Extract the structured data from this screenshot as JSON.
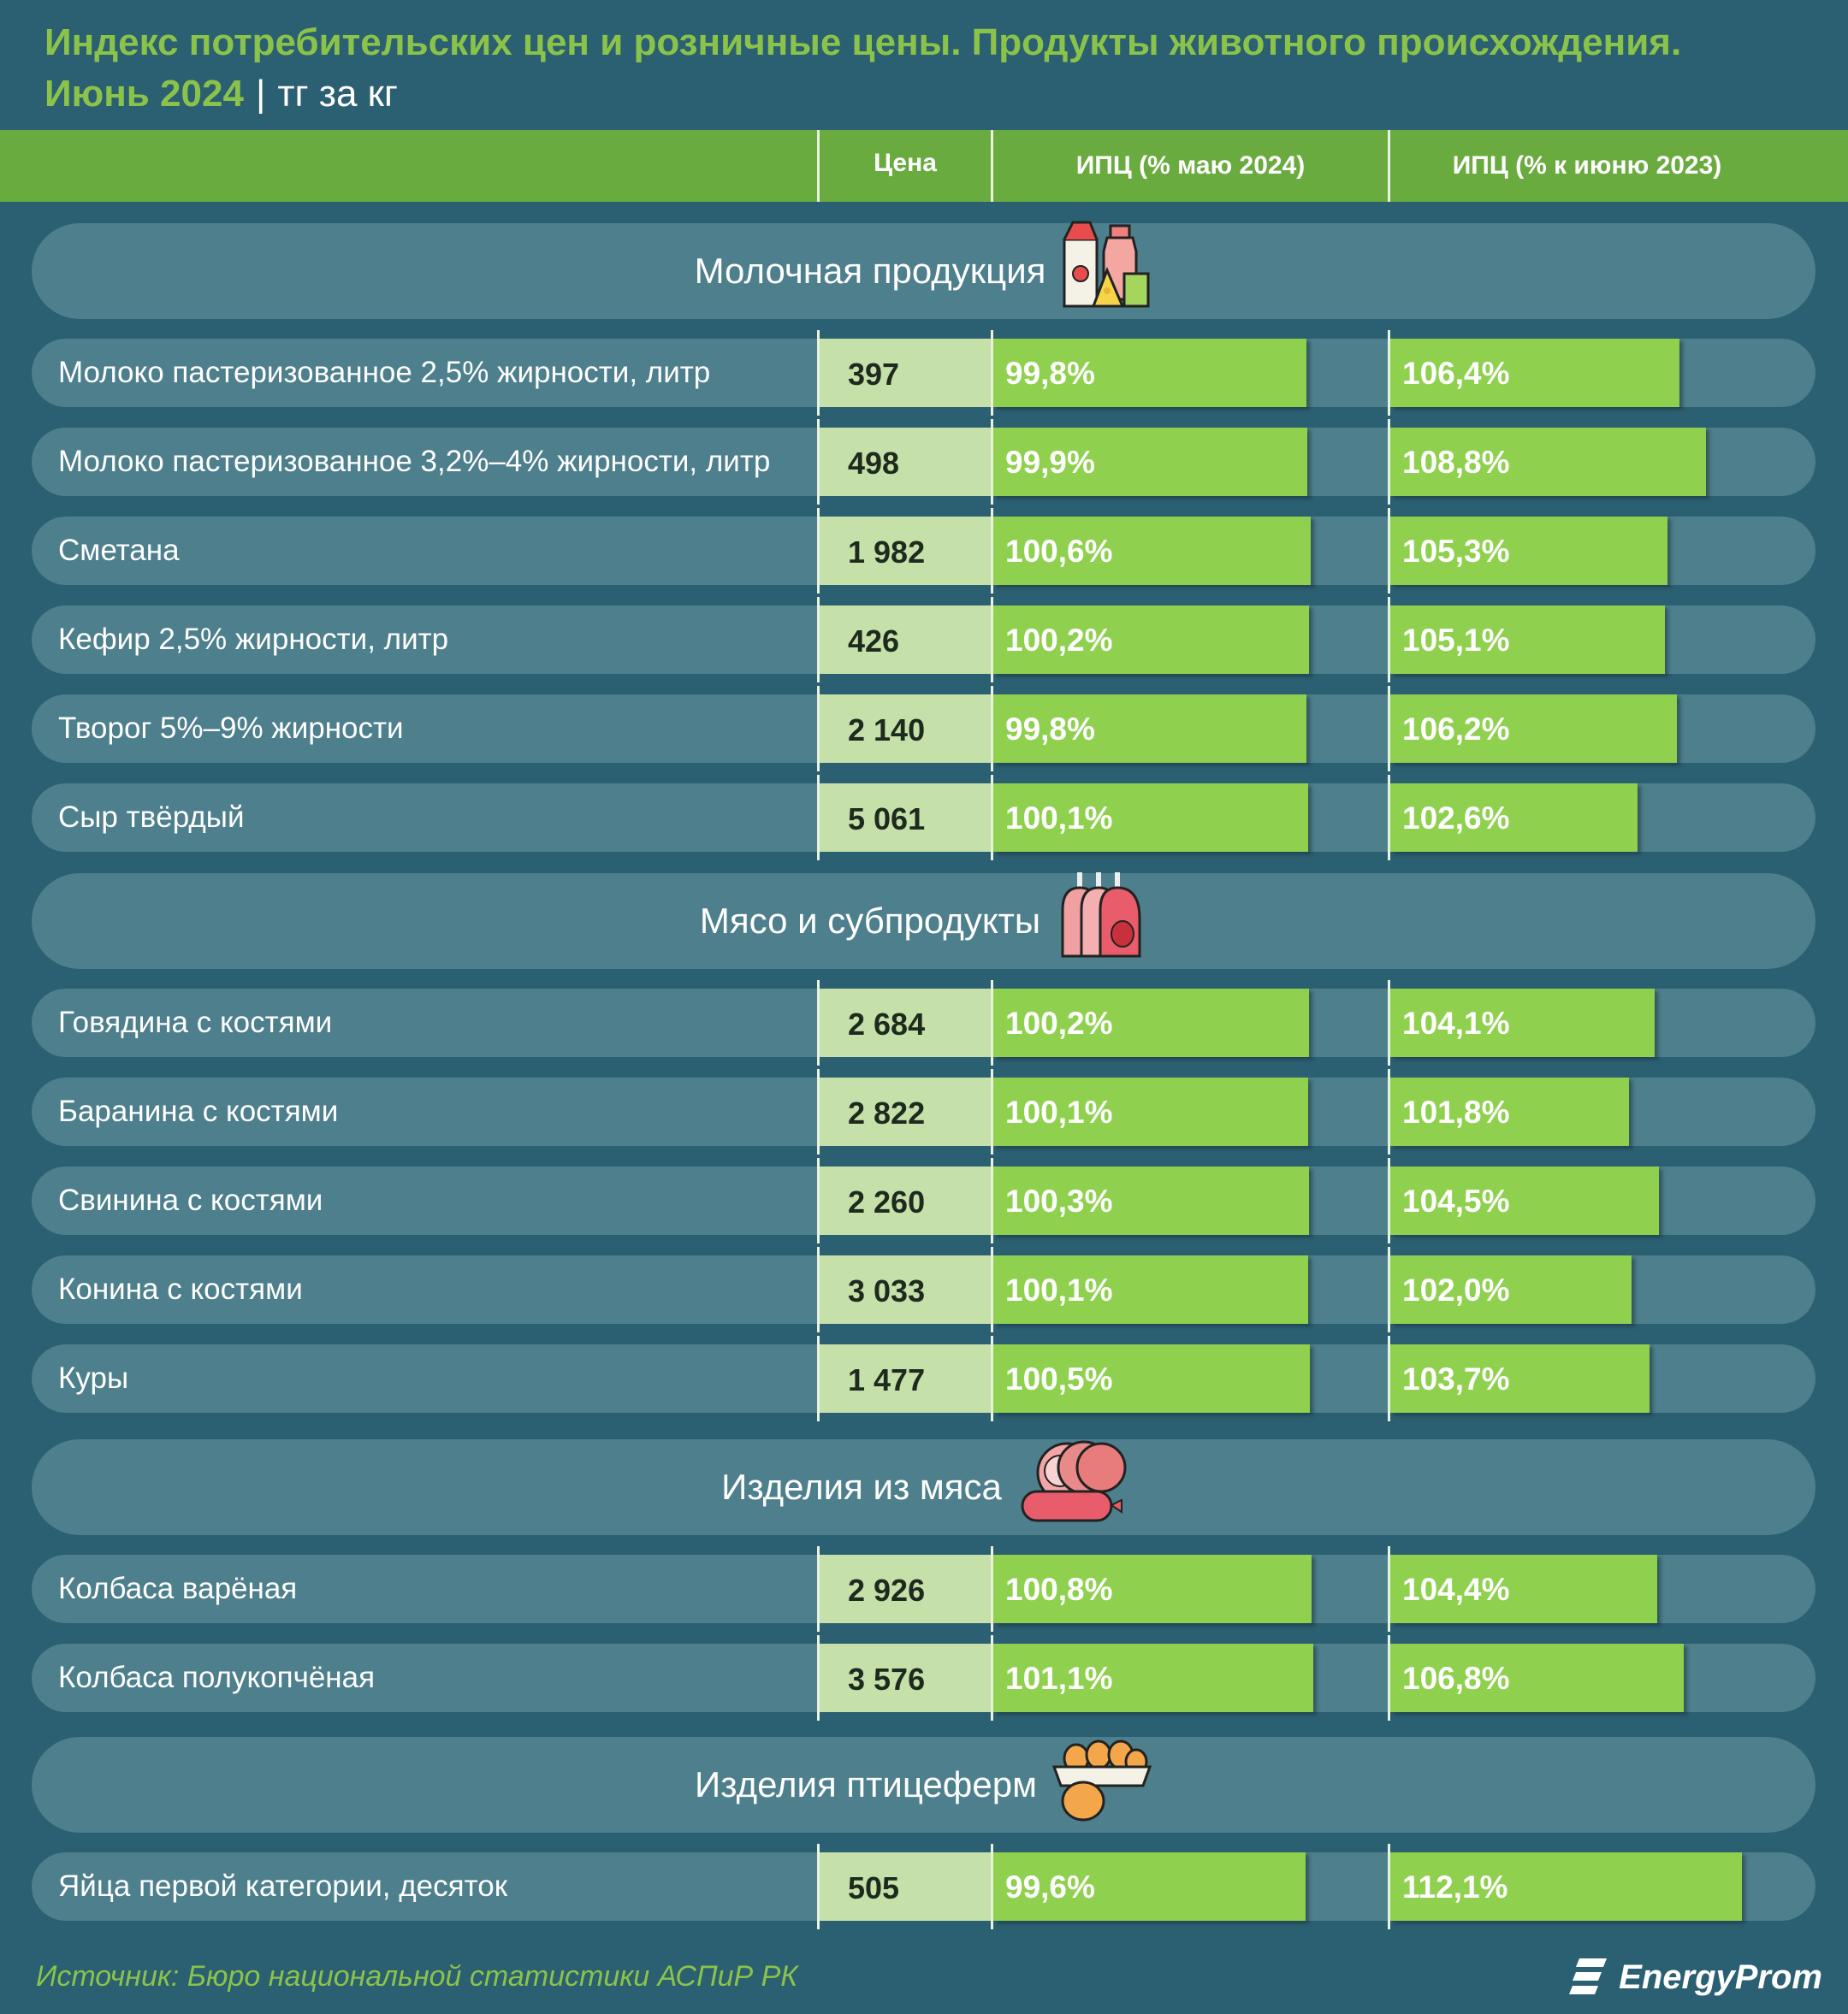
{
  "title": {
    "line1": "Индекс потребительских цен и розничные цены. Продукты животного происхождения.",
    "line2_main": "Июнь 2024",
    "separator": "|",
    "unit": "тг за кг"
  },
  "header": {
    "price": "Цена",
    "cpi_month": "ИПЦ (% маю 2024)",
    "cpi_year": "ИПЦ (% к июню 2023)"
  },
  "colors": {
    "background": "#2b5f72",
    "pill": "#4d7f8c",
    "header": "#6aab3f",
    "bar": "#8fd14f",
    "price_cell": "#c6e0a9",
    "title": "#8bc34a"
  },
  "chart_data": {
    "type": "table",
    "title": "Индекс потребительских цен и розничные цены. Продукты животного происхождения.",
    "subtitle": "Июнь 2024 | тг за кг",
    "columns": [
      "Цена",
      "ИПЦ (% маю 2024)",
      "ИПЦ (% к июню 2023)"
    ],
    "bar_scale_max": 112.1,
    "groups": [
      {
        "name": "Молочная продукция",
        "icon": "dairy-icon",
        "items": [
          {
            "name": "Молоко пастеризованное 2,5% жирности, литр",
            "price": "397",
            "cpi_month": 99.8,
            "cpi_month_label": "99,8%",
            "cpi_year": 106.4,
            "cpi_year_label": "106,4%"
          },
          {
            "name": "Молоко пастеризованное 3,2%–4% жирности, литр",
            "price": "498",
            "cpi_month": 99.9,
            "cpi_month_label": "99,9%",
            "cpi_year": 108.8,
            "cpi_year_label": "108,8%"
          },
          {
            "name": "Сметана",
            "price": "1 982",
            "cpi_month": 100.6,
            "cpi_month_label": "100,6%",
            "cpi_year": 105.3,
            "cpi_year_label": "105,3%"
          },
          {
            "name": "Кефир 2,5% жирности, литр",
            "price": "426",
            "cpi_month": 100.2,
            "cpi_month_label": "100,2%",
            "cpi_year": 105.1,
            "cpi_year_label": "105,1%"
          },
          {
            "name": "Творог 5%–9% жирности",
            "price": "2 140",
            "cpi_month": 99.8,
            "cpi_month_label": "99,8%",
            "cpi_year": 106.2,
            "cpi_year_label": "106,2%"
          },
          {
            "name": "Сыр твёрдый",
            "price": "5 061",
            "cpi_month": 100.1,
            "cpi_month_label": "100,1%",
            "cpi_year": 102.6,
            "cpi_year_label": "102,6%"
          }
        ]
      },
      {
        "name": "Мясо и субпродукты",
        "icon": "meat-icon",
        "items": [
          {
            "name": "Говядина с костями",
            "price": "2 684",
            "cpi_month": 100.2,
            "cpi_month_label": "100,2%",
            "cpi_year": 104.1,
            "cpi_year_label": "104,1%"
          },
          {
            "name": "Баранина с костями",
            "price": "2 822",
            "cpi_month": 100.1,
            "cpi_month_label": "100,1%",
            "cpi_year": 101.8,
            "cpi_year_label": "101,8%"
          },
          {
            "name": "Свинина с костями",
            "price": "2 260",
            "cpi_month": 100.3,
            "cpi_month_label": "100,3%",
            "cpi_year": 104.5,
            "cpi_year_label": "104,5%"
          },
          {
            "name": "Конина с костями",
            "price": "3 033",
            "cpi_month": 100.1,
            "cpi_month_label": "100,1%",
            "cpi_year": 102.0,
            "cpi_year_label": "102,0%"
          },
          {
            "name": "Куры",
            "price": "1 477",
            "cpi_month": 100.5,
            "cpi_month_label": "100,5%",
            "cpi_year": 103.7,
            "cpi_year_label": "103,7%"
          }
        ]
      },
      {
        "name": "Изделия из мяса",
        "icon": "sausage-icon",
        "items": [
          {
            "name": "Колбаса варёная",
            "price": "2 926",
            "cpi_month": 100.8,
            "cpi_month_label": "100,8%",
            "cpi_year": 104.4,
            "cpi_year_label": "104,4%"
          },
          {
            "name": "Колбаса полукопчёная",
            "price": "3 576",
            "cpi_month": 101.1,
            "cpi_month_label": "101,1%",
            "cpi_year": 106.8,
            "cpi_year_label": "106,8%"
          }
        ]
      },
      {
        "name": "Изделия птицеферм",
        "icon": "eggs-icon",
        "items": [
          {
            "name": "Яйца первой категории, десяток",
            "price": "505",
            "cpi_month": 99.6,
            "cpi_month_label": "99,6%",
            "cpi_year": 112.1,
            "cpi_year_label": "112,1%"
          }
        ]
      }
    ]
  },
  "footer": {
    "source": "Источник: Бюро национальной статистики АСПиР РК",
    "brand": "EnergyProm"
  }
}
